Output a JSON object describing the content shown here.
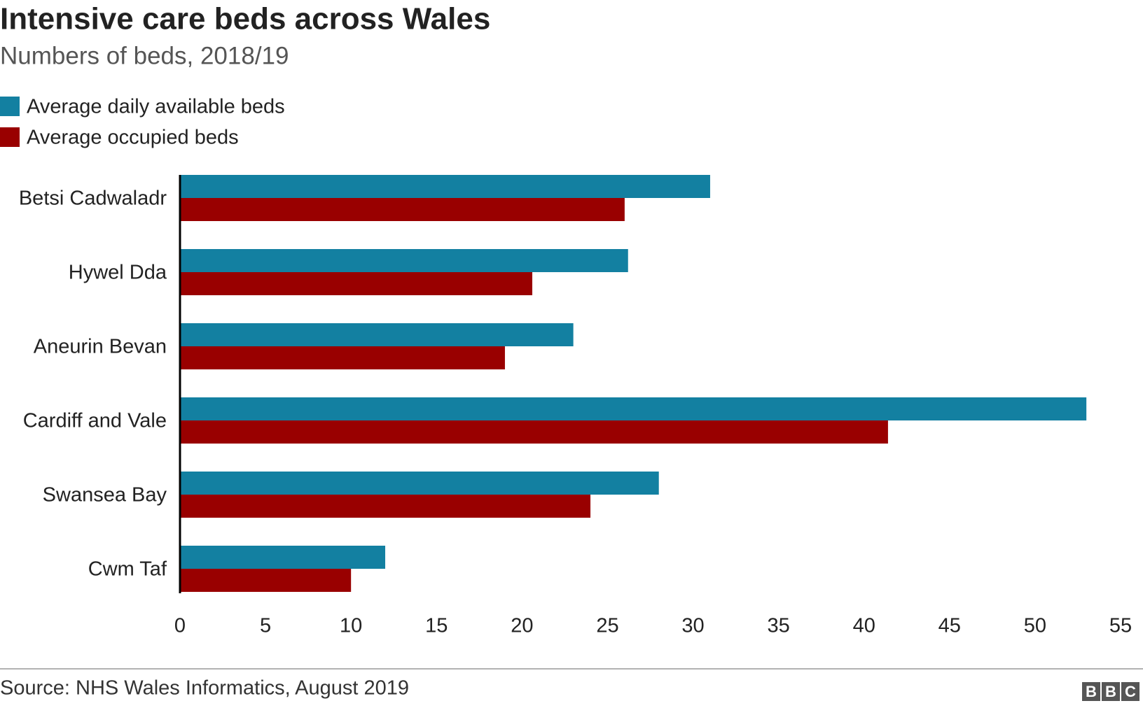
{
  "chart_data": {
    "type": "bar",
    "orientation": "horizontal",
    "title": "Intensive care beds across Wales",
    "subtitle": "Numbers of beds, 2018/19",
    "categories": [
      "Betsi Cadwaladr",
      "Hywel Dda",
      "Aneurin Bevan",
      "Cardiff and Vale",
      "Swansea Bay",
      "Cwm Taf"
    ],
    "series": [
      {
        "name": "Average daily available beds",
        "color": "#1380a1",
        "values": [
          31,
          26.2,
          23,
          53,
          28,
          12
        ]
      },
      {
        "name": "Average occupied beds",
        "color": "#990000",
        "values": [
          26,
          20.6,
          19,
          41.4,
          24,
          10
        ]
      }
    ],
    "xlim": [
      0,
      55
    ],
    "xticks": [
      0,
      5,
      10,
      15,
      20,
      25,
      30,
      35,
      40,
      45,
      50,
      55
    ],
    "legend": "top-left",
    "source": "Source: NHS Wales Informatics, August 2019",
    "logo": "BBC"
  }
}
